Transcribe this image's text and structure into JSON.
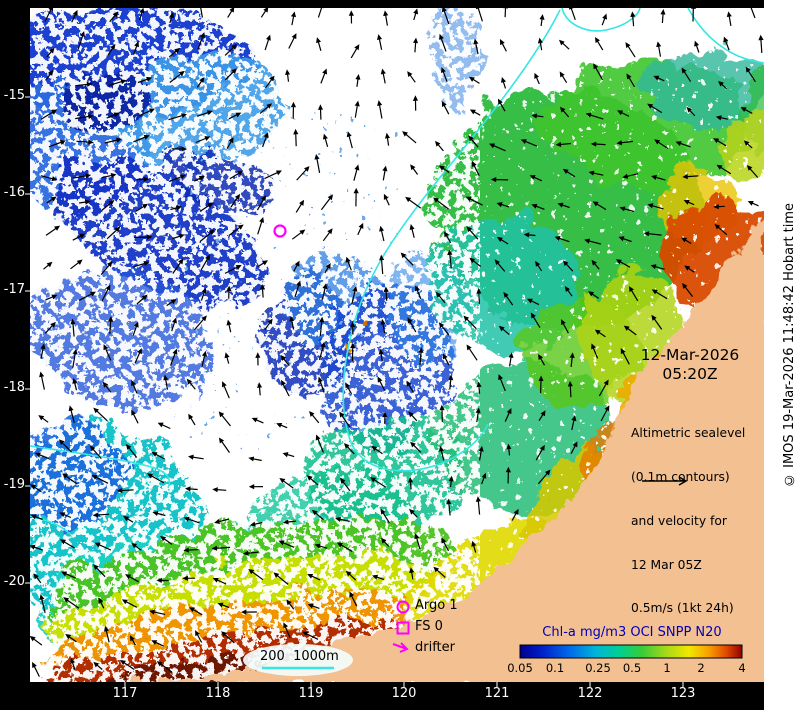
{
  "map": {
    "date": "12-Mar-2026",
    "time": "05:20Z",
    "annotation": {
      "lines": [
        "Altimetric sealevel",
        "(0.1m contours)",
        "and velocity for",
        "12 Mar 05Z",
        "0.5m/s (1kt 24h)"
      ]
    },
    "legend": {
      "items": [
        {
          "label": "Argo 1",
          "marker": "circle"
        },
        {
          "label": "FS 0",
          "marker": "square"
        },
        {
          "label": "drifter",
          "marker": "arrow"
        }
      ]
    },
    "colorbar": {
      "title": "Chl-a mg/m3 OCI SNPP N20",
      "ticks": [
        "0.05",
        "0.1",
        "0.25",
        "0.5",
        "1",
        "2",
        "4"
      ]
    },
    "scalebar": "200  1000m",
    "axes": {
      "lon": [
        "117",
        "118",
        "119",
        "120",
        "121",
        "122",
        "123"
      ],
      "lat": [
        "-15",
        "-16",
        "-17",
        "-18",
        "-19",
        "-20"
      ]
    },
    "copyright": "© IMOS 19-Mar-2026 11:48:42 Hobart time",
    "colors": {
      "magenta": "#ff00ff",
      "contour": "#35e6e2",
      "land": "#f2c091",
      "colorbar_title": "#0000bb",
      "arrow": "#000000"
    },
    "arrow_field": {
      "spacing": 31,
      "seed": 42
    }
  }
}
